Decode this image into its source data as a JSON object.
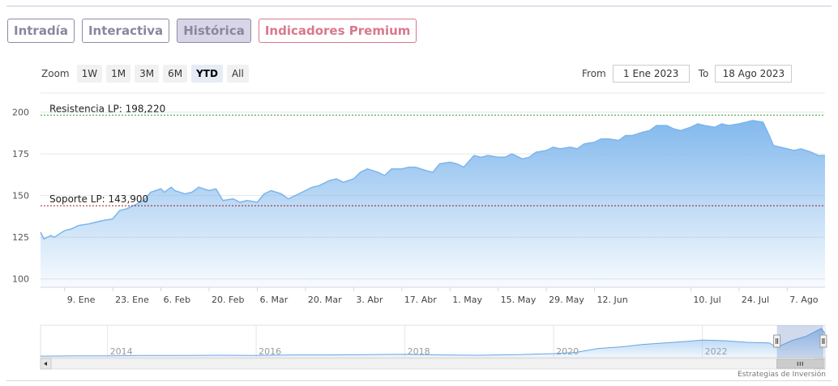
{
  "tabs": [
    {
      "label": "Intradía",
      "active": false
    },
    {
      "label": "Interactiva",
      "active": false
    },
    {
      "label": "Histórica",
      "active": true
    },
    {
      "label": "Indicadores Premium",
      "active": false
    }
  ],
  "zoom": {
    "label": "Zoom",
    "options": [
      "1W",
      "1M",
      "3M",
      "6M",
      "YTD",
      "All"
    ],
    "selected": "YTD"
  },
  "range": {
    "from_label": "From",
    "from_value": "1 Ene 2023",
    "to_label": "To",
    "to_value": "18 Ago 2023"
  },
  "credits": "Estrategias de Inversión",
  "colors": {
    "series": "#7cb5ec",
    "resistance": "#2e9e2e",
    "support": "#a01818",
    "tab_border": "#8e8aa8",
    "premium": "#d9788c"
  },
  "chart_data": {
    "type": "area",
    "title": "",
    "xlabel": "",
    "ylabel": "",
    "ylim": [
      95,
      210
    ],
    "yticks": [
      100,
      125,
      150,
      175,
      200
    ],
    "grid": true,
    "x_start": "2023-01-02",
    "x_end": "2023-08-18",
    "x_ticks": [
      {
        "date": "2023-01-09",
        "label": "9. Ene"
      },
      {
        "date": "2023-01-23",
        "label": "23. Ene"
      },
      {
        "date": "2023-02-06",
        "label": "6. Feb"
      },
      {
        "date": "2023-02-20",
        "label": "20. Feb"
      },
      {
        "date": "2023-03-06",
        "label": "6. Mar"
      },
      {
        "date": "2023-03-20",
        "label": "20. Mar"
      },
      {
        "date": "2023-04-03",
        "label": "3. Abr"
      },
      {
        "date": "2023-04-17",
        "label": "17. Abr"
      },
      {
        "date": "2023-05-01",
        "label": "1. May"
      },
      {
        "date": "2023-05-15",
        "label": "15. May"
      },
      {
        "date": "2023-05-29",
        "label": "29. May"
      },
      {
        "date": "2023-06-12",
        "label": "12. Jun"
      },
      {
        "date": "2023-07-10",
        "label": "10. Jul"
      },
      {
        "date": "2023-07-24",
        "label": "24. Jul"
      },
      {
        "date": "2023-08-07",
        "label": "7. Ago"
      }
    ],
    "series": [
      {
        "points": [
          [
            "2023-01-02",
            128
          ],
          [
            "2023-01-03",
            124
          ],
          [
            "2023-01-05",
            126
          ],
          [
            "2023-01-06",
            125
          ],
          [
            "2023-01-09",
            129
          ],
          [
            "2023-01-11",
            130
          ],
          [
            "2023-01-13",
            132
          ],
          [
            "2023-01-16",
            133
          ],
          [
            "2023-01-18",
            134
          ],
          [
            "2023-01-20",
            135
          ],
          [
            "2023-01-23",
            136
          ],
          [
            "2023-01-25",
            141
          ],
          [
            "2023-01-27",
            142
          ],
          [
            "2023-01-30",
            145
          ],
          [
            "2023-02-01",
            147
          ],
          [
            "2023-02-03",
            152
          ],
          [
            "2023-02-06",
            154
          ],
          [
            "2023-02-07",
            152
          ],
          [
            "2023-02-09",
            155
          ],
          [
            "2023-02-10",
            153
          ],
          [
            "2023-02-13",
            151
          ],
          [
            "2023-02-15",
            152
          ],
          [
            "2023-02-17",
            155
          ],
          [
            "2023-02-20",
            153
          ],
          [
            "2023-02-22",
            154
          ],
          [
            "2023-02-24",
            147
          ],
          [
            "2023-02-27",
            148
          ],
          [
            "2023-03-01",
            146
          ],
          [
            "2023-03-03",
            147
          ],
          [
            "2023-03-06",
            146
          ],
          [
            "2023-03-08",
            151
          ],
          [
            "2023-03-10",
            153
          ],
          [
            "2023-03-13",
            151
          ],
          [
            "2023-03-15",
            148
          ],
          [
            "2023-03-17",
            150
          ],
          [
            "2023-03-20",
            153
          ],
          [
            "2023-03-22",
            155
          ],
          [
            "2023-03-24",
            156
          ],
          [
            "2023-03-27",
            159
          ],
          [
            "2023-03-29",
            160
          ],
          [
            "2023-03-31",
            158
          ],
          [
            "2023-04-03",
            160
          ],
          [
            "2023-04-05",
            164
          ],
          [
            "2023-04-07",
            166
          ],
          [
            "2023-04-10",
            164
          ],
          [
            "2023-04-12",
            162
          ],
          [
            "2023-04-14",
            166
          ],
          [
            "2023-04-17",
            166
          ],
          [
            "2023-04-19",
            167
          ],
          [
            "2023-04-21",
            167
          ],
          [
            "2023-04-24",
            165
          ],
          [
            "2023-04-26",
            164
          ],
          [
            "2023-04-28",
            169
          ],
          [
            "2023-05-01",
            170
          ],
          [
            "2023-05-03",
            169
          ],
          [
            "2023-05-05",
            167
          ],
          [
            "2023-05-08",
            174
          ],
          [
            "2023-05-10",
            173
          ],
          [
            "2023-05-12",
            174
          ],
          [
            "2023-05-15",
            173
          ],
          [
            "2023-05-17",
            173
          ],
          [
            "2023-05-19",
            175
          ],
          [
            "2023-05-22",
            172
          ],
          [
            "2023-05-24",
            173
          ],
          [
            "2023-05-26",
            176
          ],
          [
            "2023-05-29",
            177
          ],
          [
            "2023-05-31",
            179
          ],
          [
            "2023-06-02",
            178
          ],
          [
            "2023-06-05",
            179
          ],
          [
            "2023-06-07",
            178
          ],
          [
            "2023-06-09",
            181
          ],
          [
            "2023-06-12",
            182
          ],
          [
            "2023-06-14",
            184
          ],
          [
            "2023-06-16",
            184
          ],
          [
            "2023-06-19",
            183
          ],
          [
            "2023-06-21",
            186
          ],
          [
            "2023-06-23",
            186
          ],
          [
            "2023-06-26",
            188
          ],
          [
            "2023-06-28",
            189
          ],
          [
            "2023-06-30",
            192
          ],
          [
            "2023-07-03",
            192
          ],
          [
            "2023-07-05",
            190
          ],
          [
            "2023-07-07",
            189
          ],
          [
            "2023-07-10",
            191
          ],
          [
            "2023-07-12",
            193
          ],
          [
            "2023-07-14",
            192
          ],
          [
            "2023-07-17",
            191
          ],
          [
            "2023-07-19",
            193
          ],
          [
            "2023-07-21",
            192
          ],
          [
            "2023-07-24",
            193
          ],
          [
            "2023-07-26",
            194
          ],
          [
            "2023-07-28",
            195
          ],
          [
            "2023-07-31",
            194
          ],
          [
            "2023-08-02",
            185
          ],
          [
            "2023-08-03",
            180
          ],
          [
            "2023-08-07",
            178
          ],
          [
            "2023-08-09",
            177
          ],
          [
            "2023-08-11",
            178
          ],
          [
            "2023-08-14",
            176
          ],
          [
            "2023-08-16",
            174
          ],
          [
            "2023-08-18",
            174
          ]
        ]
      }
    ],
    "plot_lines": [
      {
        "label": "Resistencia LP: 198,220",
        "value": 198.22,
        "color": "#2e9e2e"
      },
      {
        "label": "Soporte LP: 143,900",
        "value": 143.9,
        "color": "#a01818"
      }
    ],
    "navigator": {
      "year_labels": [
        "2014",
        "2016",
        "2018",
        "2020",
        "2022"
      ],
      "years": [
        2014,
        2016,
        2018,
        2020,
        2022
      ],
      "x_start_year": 2013.1,
      "x_end_year": 2023.65,
      "selected_from": "2023-01-02",
      "selected_to": "2023-08-18",
      "series": [
        [
          2013.1,
          100
        ],
        [
          2013.6,
          101
        ],
        [
          2014.0,
          101
        ],
        [
          2014.5,
          102
        ],
        [
          2015.0,
          102
        ],
        [
          2015.5,
          103
        ],
        [
          2016.0,
          102
        ],
        [
          2016.5,
          104
        ],
        [
          2017.0,
          104
        ],
        [
          2017.5,
          105
        ],
        [
          2018.0,
          106
        ],
        [
          2018.5,
          104
        ],
        [
          2019.0,
          103
        ],
        [
          2019.5,
          105
        ],
        [
          2020.0,
          108
        ],
        [
          2020.3,
          112
        ],
        [
          2020.6,
          125
        ],
        [
          2020.9,
          130
        ],
        [
          2021.2,
          138
        ],
        [
          2021.5,
          143
        ],
        [
          2021.8,
          148
        ],
        [
          2022.0,
          152
        ],
        [
          2022.3,
          150
        ],
        [
          2022.6,
          145
        ],
        [
          2022.9,
          143
        ],
        [
          2023.0,
          128
        ],
        [
          2023.2,
          150
        ],
        [
          2023.4,
          165
        ],
        [
          2023.6,
          190
        ],
        [
          2023.65,
          174
        ]
      ]
    }
  }
}
